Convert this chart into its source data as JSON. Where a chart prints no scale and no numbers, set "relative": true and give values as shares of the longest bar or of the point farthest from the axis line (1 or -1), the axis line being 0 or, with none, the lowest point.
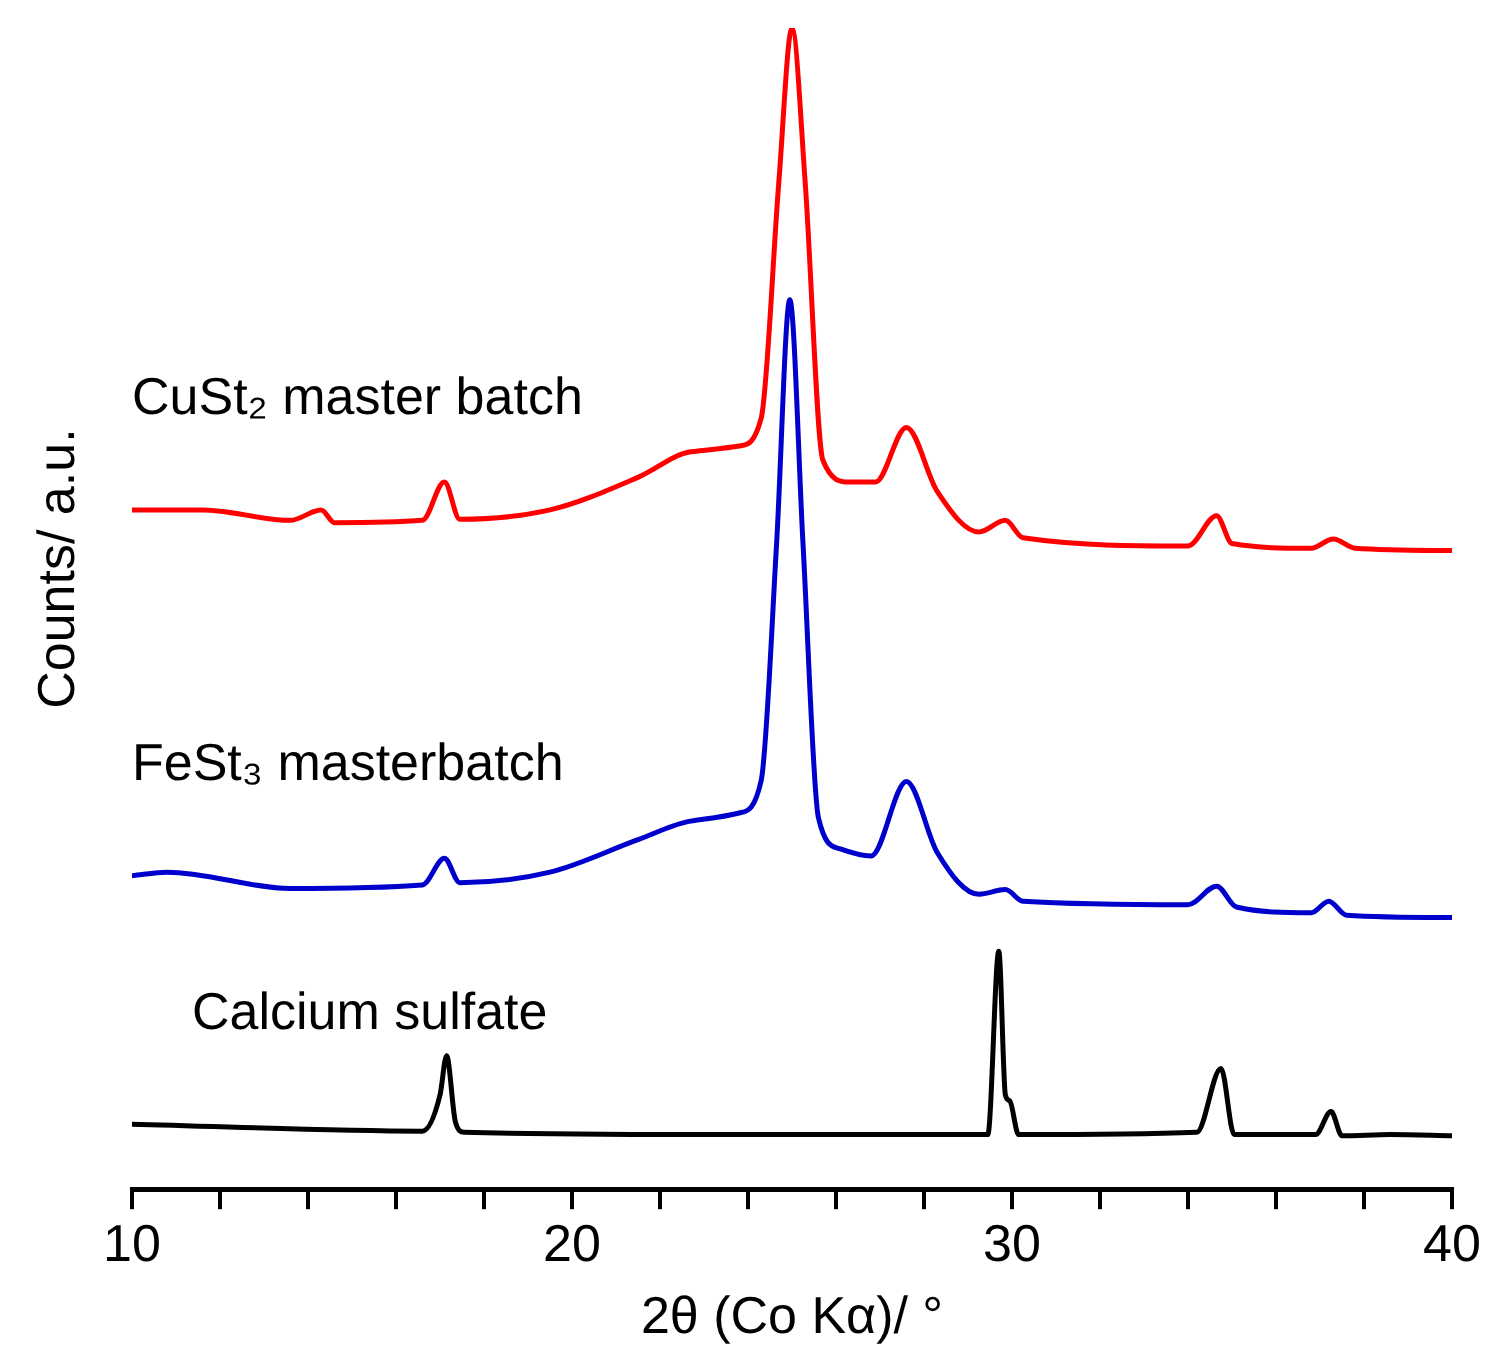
{
  "chart_data": {
    "type": "line",
    "relative": true,
    "xlabel": "2θ (Co Kα)/ °",
    "ylabel": "Counts/ a.u.",
    "xlim": [
      10,
      40
    ],
    "xticks": [
      10,
      {
        "value": 12,
        "label": null
      },
      {
        "value": 14,
        "label": null
      },
      {
        "value": 16,
        "label": null
      },
      {
        "value": 18,
        "label": null
      },
      20,
      {
        "value": 22,
        "label": null
      },
      {
        "value": 24,
        "label": null
      },
      {
        "value": 26,
        "label": null
      },
      {
        "value": 28,
        "label": null
      },
      30,
      {
        "value": 32,
        "label": null
      },
      {
        "value": 34,
        "label": null
      },
      {
        "value": 36,
        "label": null
      },
      {
        "value": 38,
        "label": null
      },
      40
    ],
    "series": [
      {
        "name": "CuSt₂ master batch",
        "color": "#ff0000",
        "x": [
          10.0,
          11.6,
          13.6,
          14.3,
          14.6,
          16.6,
          17.1,
          17.45,
          19.5,
          21.5,
          22.7,
          23.8,
          24.3,
          24.7,
          25.0,
          25.3,
          25.7,
          26.3,
          26.9,
          27.6,
          28.3,
          29.25,
          29.85,
          30.25,
          34.0,
          34.65,
          35.0,
          36.8,
          37.3,
          37.8,
          40.0
        ],
        "values": [
          0.585,
          0.585,
          0.576,
          0.585,
          0.574,
          0.576,
          0.609,
          0.577,
          0.585,
          0.613,
          0.635,
          0.64,
          0.664,
          0.867,
          1.0,
          0.867,
          0.628,
          0.609,
          0.609,
          0.656,
          0.601,
          0.566,
          0.576,
          0.561,
          0.554,
          0.58,
          0.556,
          0.552,
          0.56,
          0.552,
          0.55
        ]
      },
      {
        "name": "FeSt₃ masterbatch",
        "color": "#0000cc",
        "x": [
          10.0,
          10.8,
          13.6,
          16.6,
          17.1,
          17.45,
          19.5,
          21.5,
          22.7,
          23.8,
          24.3,
          24.65,
          24.95,
          25.25,
          25.6,
          26.1,
          26.8,
          27.6,
          28.3,
          29.25,
          29.85,
          30.25,
          34.0,
          34.65,
          35.1,
          36.8,
          37.2,
          37.6,
          40.0
        ],
        "values": [
          0.27,
          0.273,
          0.259,
          0.262,
          0.285,
          0.264,
          0.273,
          0.301,
          0.317,
          0.324,
          0.352,
          0.556,
          0.766,
          0.556,
          0.32,
          0.293,
          0.287,
          0.351,
          0.29,
          0.254,
          0.258,
          0.248,
          0.245,
          0.261,
          0.243,
          0.238,
          0.248,
          0.236,
          0.234
        ]
      },
      {
        "name": "Calcium sulfate",
        "color": "#000000",
        "x": [
          10.0,
          16.6,
          17.0,
          17.15,
          17.35,
          17.55,
          23.5,
          29.45,
          29.7,
          29.85,
          29.95,
          30.15,
          34.2,
          34.75,
          35.05,
          36.9,
          37.25,
          37.5,
          38.6,
          40.0
        ],
        "values": [
          0.056,
          0.05,
          0.081,
          0.115,
          0.058,
          0.049,
          0.047,
          0.047,
          0.205,
          0.081,
          0.076,
          0.047,
          0.049,
          0.104,
          0.047,
          0.047,
          0.067,
          0.046,
          0.047,
          0.046
        ]
      }
    ]
  }
}
